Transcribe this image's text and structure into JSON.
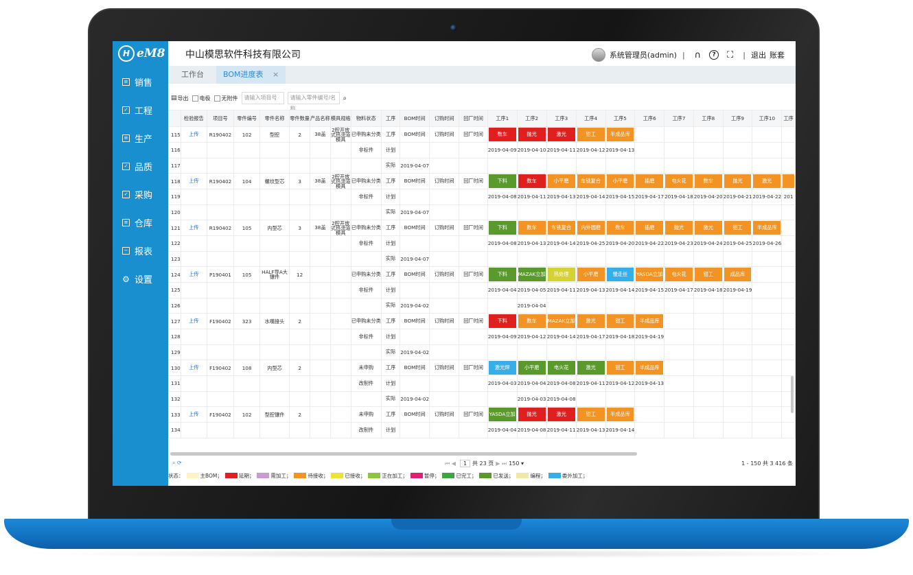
{
  "app": {
    "logo_text": "eM8",
    "logo_mark": "H",
    "company": "中山模思软件科技有限公司",
    "user": "系统管理员(admin)",
    "sep": "|",
    "logout": "退出",
    "account_set": "账套"
  },
  "sidebar": {
    "items": [
      {
        "label": "销售",
        "icon": "list-icon",
        "glyph": "≡"
      },
      {
        "label": "工程",
        "icon": "check-box-icon",
        "glyph": "✓"
      },
      {
        "label": "生产",
        "icon": "form-icon",
        "glyph": "≡"
      },
      {
        "label": "品质",
        "icon": "check-doc-icon",
        "glyph": "✓"
      },
      {
        "label": "采购",
        "icon": "check-doc-icon",
        "glyph": "✓"
      },
      {
        "label": "仓库",
        "icon": "doc-icon",
        "glyph": "≡"
      },
      {
        "label": "报表",
        "icon": "report-icon",
        "glyph": "−"
      },
      {
        "label": "设置",
        "icon": "gear-icon",
        "glyph": "⚙"
      }
    ]
  },
  "tabs": [
    {
      "label": "工作台",
      "active": false
    },
    {
      "label": "BOM进度表",
      "active": true,
      "close": "×"
    }
  ],
  "toolbar": {
    "export": "导出",
    "cb1": "电极",
    "cb2": "无附件",
    "input1_placeholder": "请输入项目号",
    "input2_placeholder": "请输入零件编号/名称"
  },
  "columns": [
    "",
    "检验报告",
    "项目号",
    "零件编号",
    "零件名称",
    "零件数量",
    "产品名称",
    "模具规格",
    "物料状态",
    "工序",
    "BOM时间",
    "订购时间",
    "回厂时间",
    "工序1",
    "工序2",
    "工序3",
    "工序4",
    "工序5",
    "工序6",
    "工序7",
    "工序8",
    "工序9",
    "工序10",
    "工序"
  ],
  "status_colors": {
    "red": "#e0201f",
    "orange": "#f39324",
    "green": "#5a9a2c",
    "blue": "#36aee8",
    "yellow": "#d7d234"
  },
  "rows": [
    {
      "n": "115",
      "report": "上传",
      "proj": "R190402",
      "part": "102",
      "name": "型腔",
      "qty": "2",
      "prod": "38盖",
      "spec": "2腔开放式热流道模具",
      "mat": "已申购未分类",
      "proc": "工序",
      "bom": "BOM时间",
      "order": "订购时间",
      "back": "回厂时间",
      "steps": [
        {
          "t": "数车",
          "c": "red"
        },
        {
          "t": "抛光",
          "c": "red"
        },
        {
          "t": "激光",
          "c": "red"
        },
        {
          "t": "钳工",
          "c": "orange"
        },
        {
          "t": "半成品库",
          "c": "orange"
        }
      ]
    },
    {
      "n": "116",
      "mat": "非标件",
      "proc": "计划",
      "dates": [
        "2019-04-09",
        "2019-04-10",
        "2019-04-11",
        "2019-04-12",
        "2019-04-13"
      ]
    },
    {
      "n": "117",
      "proc": "实际",
      "bom": "2019-04-07"
    },
    {
      "n": "118",
      "report": "上传",
      "proj": "R190402",
      "part": "104",
      "name": "螺纹型芯",
      "qty": "3",
      "prod": "38盖",
      "spec": "2腔开放式热流道模具",
      "mat": "已申购未分类",
      "proc": "工序",
      "bom": "BOM时间",
      "order": "订购时间",
      "back": "回厂时间",
      "steps": [
        {
          "t": "下料",
          "c": "green"
        },
        {
          "t": "数车",
          "c": "red"
        },
        {
          "t": "小平磨",
          "c": "orange"
        },
        {
          "t": "车铣复合",
          "c": "orange"
        },
        {
          "t": "小平磨",
          "c": "orange"
        },
        {
          "t": "插磨",
          "c": "orange"
        },
        {
          "t": "电火花",
          "c": "orange"
        },
        {
          "t": "数车",
          "c": "orange"
        },
        {
          "t": "抛光",
          "c": "orange"
        },
        {
          "t": "激光",
          "c": "orange"
        },
        {
          "t": "",
          "c": "orange"
        }
      ]
    },
    {
      "n": "119",
      "mat": "非标件",
      "proc": "计划",
      "dates": [
        "2019-04-08",
        "2019-04-11",
        "2019-04-13",
        "2019-04-14",
        "2019-04-15",
        "2019-04-17",
        "2019-04-18",
        "2019-04-20",
        "2019-04-21",
        "2019-04-22",
        "201"
      ]
    },
    {
      "n": "120",
      "proc": "实际",
      "bom": "2019-04-07"
    },
    {
      "n": "121",
      "report": "上传",
      "proj": "R190402",
      "part": "105",
      "name": "内型芯",
      "qty": "3",
      "prod": "38盖",
      "spec": "2腔开放式热流道模具",
      "mat": "已申购未分类",
      "proc": "工序",
      "bom": "BOM时间",
      "order": "订购时间",
      "back": "回厂时间",
      "steps": [
        {
          "t": "下料",
          "c": "green"
        },
        {
          "t": "数车",
          "c": "orange"
        },
        {
          "t": "车铣复合",
          "c": "orange"
        },
        {
          "t": "内外圆磨",
          "c": "orange"
        },
        {
          "t": "数车",
          "c": "orange"
        },
        {
          "t": "插磨",
          "c": "orange"
        },
        {
          "t": "抛光",
          "c": "orange"
        },
        {
          "t": "激光",
          "c": "orange"
        },
        {
          "t": "钳工",
          "c": "orange"
        },
        {
          "t": "半成品库",
          "c": "orange"
        }
      ]
    },
    {
      "n": "122",
      "mat": "非标件",
      "proc": "计划",
      "dates": [
        "2019-04-08",
        "2019-04-13",
        "2019-04-14",
        "2019-04-25",
        "2019-04-20",
        "2019-04-22",
        "2019-04-23",
        "2019-04-24",
        "2019-04-25",
        "2019-04-26"
      ]
    },
    {
      "n": "123",
      "proc": "实际",
      "bom": "2019-04-07"
    },
    {
      "n": "124",
      "report": "上传",
      "proj": "P190401",
      "part": "105",
      "name": "HALF导A大镶件",
      "qty": "12",
      "mat": "已申购未分类",
      "proc": "工序",
      "bom": "BOM时间",
      "order": "订购时间",
      "back": "回厂时间",
      "steps": [
        {
          "t": "下料",
          "c": "green"
        },
        {
          "t": "MAZAK立加",
          "c": "green"
        },
        {
          "t": "热处理",
          "c": "yellow"
        },
        {
          "t": "小平磨",
          "c": "orange"
        },
        {
          "t": "慢走丝",
          "c": "blue"
        },
        {
          "t": "YASDA立加",
          "c": "orange"
        },
        {
          "t": "电火花",
          "c": "orange"
        },
        {
          "t": "钳工",
          "c": "orange"
        },
        {
          "t": "成品库",
          "c": "orange"
        }
      ]
    },
    {
      "n": "125",
      "mat": "非标件",
      "proc": "计划",
      "dates": [
        "2019-04-04",
        "2019-04-05",
        "2019-04-11",
        "2019-04-13",
        "2019-04-14",
        "2019-04-15",
        "2019-04-17",
        "2019-04-18",
        "2019-04-19"
      ]
    },
    {
      "n": "126",
      "proc": "实际",
      "bom": "2019-04-02",
      "dates": [
        "",
        "2019-04-04"
      ]
    },
    {
      "n": "127",
      "report": "上传",
      "proj": "F190402",
      "part": "323",
      "name": "水嘴接头",
      "qty": "2",
      "mat": "已申购未分类",
      "proc": "工序",
      "bom": "BOM时间",
      "order": "订购时间",
      "back": "回厂时间",
      "steps": [
        {
          "t": "下料",
          "c": "red"
        },
        {
          "t": "数车",
          "c": "orange"
        },
        {
          "t": "MAZAK立加",
          "c": "orange"
        },
        {
          "t": "激光",
          "c": "orange"
        },
        {
          "t": "钳工",
          "c": "orange"
        },
        {
          "t": "半成品库",
          "c": "orange"
        }
      ]
    },
    {
      "n": "128",
      "mat": "非标件",
      "proc": "计划",
      "dates": [
        "2019-04-09",
        "2019-04-12",
        "2019-04-14",
        "2019-04-17",
        "2019-04-18",
        "2019-04-19"
      ]
    },
    {
      "n": "129",
      "proc": "实际",
      "bom": "2019-04-02"
    },
    {
      "n": "130",
      "report": "上传",
      "proj": "F190402",
      "part": "108",
      "name": "内型芯",
      "qty": "2",
      "mat": "未申购",
      "proc": "工序",
      "bom": "BOM时间",
      "order": "订购时间",
      "back": "回厂时间",
      "steps": [
        {
          "t": "激光焊",
          "c": "blue"
        },
        {
          "t": "小平磨",
          "c": "green"
        },
        {
          "t": "电火花",
          "c": "green"
        },
        {
          "t": "激光",
          "c": "green"
        },
        {
          "t": "钳工",
          "c": "orange"
        },
        {
          "t": "半成品库",
          "c": "orange"
        }
      ]
    },
    {
      "n": "131",
      "mat": "改制件",
      "proc": "计划",
      "dates": [
        "2019-04-03",
        "2019-04-04",
        "2019-04-08",
        "2019-04-11",
        "2019-04-12",
        "2019-04-13"
      ]
    },
    {
      "n": "132",
      "proc": "实际",
      "bom": "2019-04-02",
      "dates": [
        "",
        "2019-04-03",
        "2019-04-08"
      ]
    },
    {
      "n": "133",
      "report": "上传",
      "proj": "F190402",
      "part": "102",
      "name": "型腔镶件",
      "qty": "2",
      "mat": "未申购",
      "proc": "工序",
      "bom": "BOM时间",
      "order": "订购时间",
      "back": "回厂时间",
      "steps": [
        {
          "t": "YASDA立加",
          "c": "green"
        },
        {
          "t": "抛光",
          "c": "red"
        },
        {
          "t": "激光",
          "c": "red"
        },
        {
          "t": "钳工",
          "c": "orange"
        },
        {
          "t": "半成品库",
          "c": "orange"
        }
      ]
    },
    {
      "n": "134",
      "mat": "改制件",
      "proc": "计划",
      "dates": [
        "2019-04-04",
        "2019-04-08",
        "2019-04-11",
        "2019-04-13",
        "2019-04-14"
      ]
    }
  ],
  "pager": {
    "tools": "⌕ ⟳",
    "first_prev": "⏮ ◀",
    "page": "1",
    "total_pages": "共 23 页",
    "next_last": "▶ ⏭",
    "page_size": "150 ▾",
    "summary": "1 - 150   共 3 416 条"
  },
  "legend": [
    {
      "label": "状态：",
      "color": ""
    },
    {
      "label": "主BOM；",
      "color": "#fdf3c7"
    },
    {
      "label": "延期；",
      "color": "#e0201f"
    },
    {
      "label": "需加工；",
      "color": "#c99bd0"
    },
    {
      "label": "待接收；",
      "color": "#f39324"
    },
    {
      "label": "已接收；",
      "color": "#f0e03a"
    },
    {
      "label": "正在加工；",
      "color": "#8cc63f"
    },
    {
      "label": "暂停；",
      "color": "#e0206e"
    },
    {
      "label": "已完工；",
      "color": "#3fa63f"
    },
    {
      "label": "已发送；",
      "color": "#5a9a2c"
    },
    {
      "label": "编程；",
      "color": "#efe9a8"
    },
    {
      "label": "委外加工；",
      "color": "#36aee8"
    }
  ]
}
